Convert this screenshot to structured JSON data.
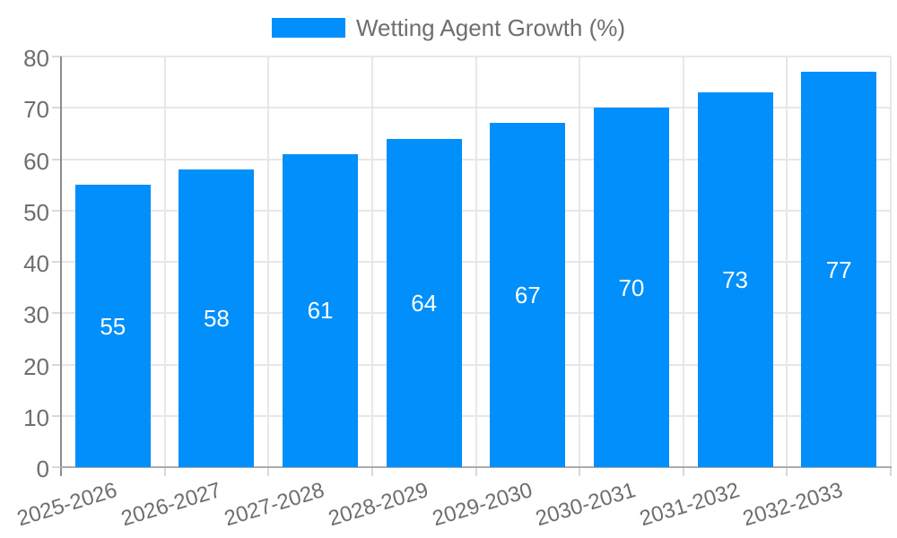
{
  "colors": {
    "bar": "#008FFB",
    "grid": "#e7e7e7",
    "tick": "#d9d9d9",
    "axis_line_y": "#8c8c8c",
    "axis_line_x": "#ababab",
    "text": "#6e6e6e",
    "value_label": "#ffffff",
    "background": "#ffffff"
  },
  "chart_data": {
    "type": "bar",
    "title": "",
    "series_name": "Wetting Agent Growth (%)",
    "categories": [
      "2025-2026",
      "2026-2027",
      "2027-2028",
      "2028-2029",
      "2029-2030",
      "2030-2031",
      "2031-2032",
      "2032-2033"
    ],
    "values": [
      55,
      58,
      61,
      64,
      67,
      70,
      73,
      77
    ],
    "xlabel": "",
    "ylabel": "",
    "ylim": [
      0,
      80
    ],
    "ytick_step": 10,
    "ytick_labels": [
      "0",
      "10",
      "20",
      "30",
      "40",
      "50",
      "60",
      "70",
      "80"
    ],
    "grid": true,
    "legend_position": "top-center",
    "bar_value_labels_visible": true
  }
}
